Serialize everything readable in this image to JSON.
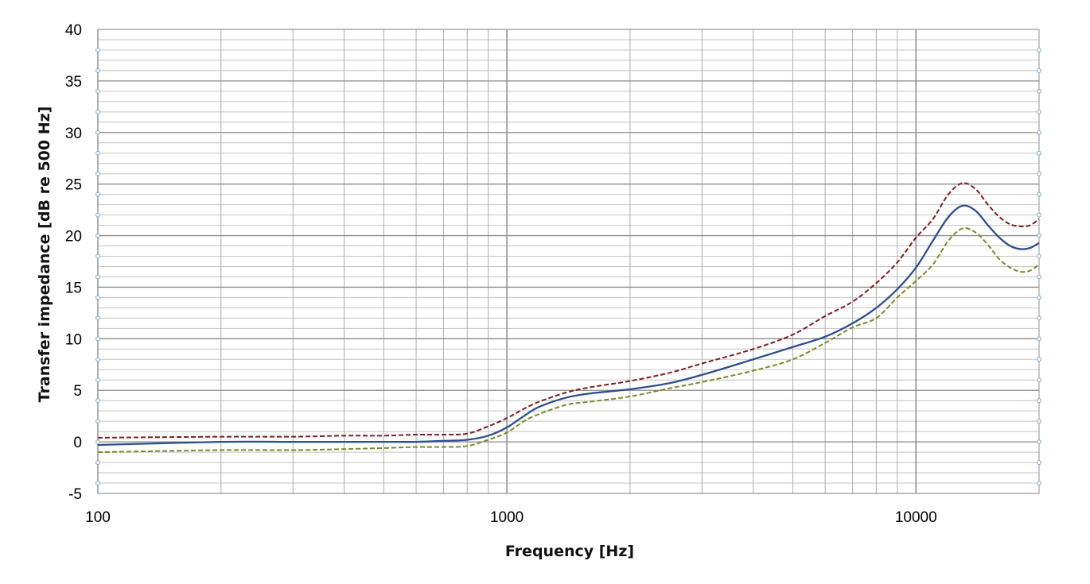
{
  "chart_data": {
    "type": "line",
    "title": "",
    "xlabel": "Frequency [Hz]",
    "ylabel": "Transfer impedance [dB re 500 Hz]",
    "x_scale": "log",
    "xlim": [
      100,
      20000
    ],
    "ylim": [
      -5,
      40
    ],
    "x_ticks": [
      "100",
      "1000",
      "10000"
    ],
    "y_ticks": [
      "-5",
      "0",
      "5",
      "10",
      "15",
      "20",
      "25",
      "30",
      "35",
      "40"
    ],
    "grid": true,
    "legend": "none",
    "series": [
      {
        "style": "dashed",
        "color": "#7b1f22",
        "x": [
          100,
          200,
          300,
          400,
          500,
          600,
          700,
          800,
          900,
          1000,
          1100,
          1200,
          1400,
          1600,
          2000,
          2500,
          3000,
          4000,
          5000,
          6000,
          7000,
          8000,
          9000,
          10000,
          11000,
          12000,
          13000,
          14000,
          15000,
          16000,
          17000,
          18000,
          19000,
          20000
        ],
        "y": [
          0.4,
          0.5,
          0.5,
          0.6,
          0.6,
          0.7,
          0.7,
          0.8,
          1.5,
          2.3,
          3.2,
          3.9,
          4.8,
          5.3,
          5.9,
          6.7,
          7.6,
          9.0,
          10.4,
          12.2,
          13.6,
          15.4,
          17.4,
          19.8,
          21.6,
          24.0,
          25.1,
          24.5,
          23.0,
          21.8,
          21.1,
          20.9,
          21.0,
          21.6
        ]
      },
      {
        "style": "solid",
        "color": "#2e4f8a",
        "x": [
          100,
          200,
          300,
          400,
          500,
          600,
          700,
          800,
          900,
          1000,
          1100,
          1200,
          1400,
          1600,
          2000,
          2500,
          3000,
          4000,
          5000,
          6000,
          7000,
          8000,
          9000,
          10000,
          11000,
          12000,
          13000,
          14000,
          15000,
          16000,
          17000,
          18000,
          19000,
          20000
        ],
        "y": [
          -0.3,
          0.0,
          0.0,
          0.0,
          0.0,
          0.0,
          0.1,
          0.2,
          0.6,
          1.4,
          2.5,
          3.4,
          4.3,
          4.7,
          5.1,
          5.7,
          6.5,
          8.0,
          9.2,
          10.2,
          11.5,
          13.0,
          14.8,
          16.9,
          19.5,
          21.8,
          22.9,
          22.4,
          21.0,
          19.8,
          19.0,
          18.7,
          18.8,
          19.3
        ]
      },
      {
        "style": "dashed",
        "color": "#7a8a2e",
        "x": [
          100,
          200,
          300,
          400,
          500,
          600,
          700,
          800,
          900,
          1000,
          1100,
          1200,
          1400,
          1600,
          2000,
          2500,
          3000,
          4000,
          5000,
          6000,
          7000,
          8000,
          9000,
          10000,
          11000,
          12000,
          13000,
          14000,
          15000,
          16000,
          17000,
          18000,
          19000,
          20000
        ],
        "y": [
          -1.0,
          -0.8,
          -0.8,
          -0.7,
          -0.6,
          -0.5,
          -0.5,
          -0.4,
          0.2,
          0.9,
          2.0,
          2.7,
          3.6,
          3.9,
          4.4,
          5.2,
          5.8,
          6.9,
          8.0,
          9.6,
          11.1,
          12.0,
          14.0,
          15.6,
          17.2,
          19.5,
          20.7,
          20.3,
          19.1,
          17.7,
          16.9,
          16.5,
          16.6,
          17.2
        ]
      }
    ]
  }
}
